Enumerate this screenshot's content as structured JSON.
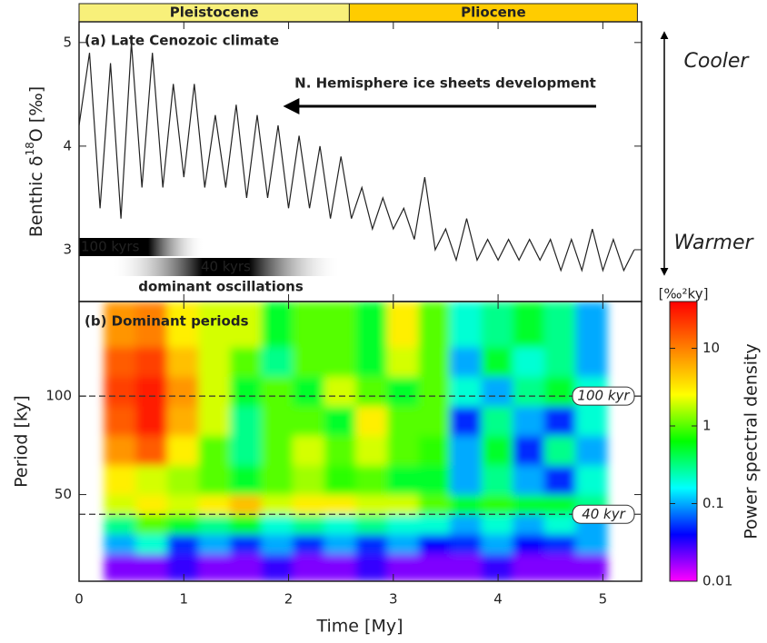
{
  "chart_data": [
    {
      "type": "line",
      "title": "(a) Late Cenozoic climate",
      "ylabel_parts": [
        "Benthic δ",
        "18",
        "O [‰]"
      ],
      "xlim": [
        0,
        5.37
      ],
      "ylim": [
        2.5,
        5.2
      ],
      "yticks": [
        3,
        4,
        5
      ],
      "x": [
        0,
        0.1,
        0.2,
        0.3,
        0.4,
        0.5,
        0.6,
        0.7,
        0.8,
        0.9,
        1.0,
        1.1,
        1.2,
        1.3,
        1.4,
        1.5,
        1.6,
        1.7,
        1.8,
        1.9,
        2.0,
        2.1,
        2.2,
        2.3,
        2.4,
        2.5,
        2.6,
        2.7,
        2.8,
        2.9,
        3.0,
        3.1,
        3.2,
        3.3,
        3.4,
        3.5,
        3.6,
        3.7,
        3.8,
        3.9,
        4.0,
        4.1,
        4.2,
        4.3,
        4.4,
        4.5,
        4.6,
        4.7,
        4.8,
        4.9,
        5.0,
        5.1,
        5.2,
        5.3
      ],
      "values": [
        4.2,
        4.9,
        3.4,
        4.8,
        3.3,
        5.0,
        3.6,
        4.9,
        3.6,
        4.6,
        3.7,
        4.6,
        3.6,
        4.3,
        3.6,
        4.4,
        3.5,
        4.3,
        3.5,
        4.2,
        3.4,
        4.1,
        3.4,
        4.0,
        3.3,
        3.9,
        3.3,
        3.6,
        3.2,
        3.5,
        3.2,
        3.4,
        3.1,
        3.7,
        3.0,
        3.2,
        2.9,
        3.3,
        2.9,
        3.1,
        2.9,
        3.1,
        2.9,
        3.1,
        2.9,
        3.1,
        2.8,
        3.1,
        2.8,
        3.2,
        2.8,
        3.1,
        2.8,
        3.0
      ],
      "color": "#222222",
      "epochs": [
        {
          "name": "Pleistocene",
          "start": 0,
          "end": 2.58,
          "color": "#f8f07a"
        },
        {
          "name": "Pliocene",
          "start": 2.58,
          "end": 5.33,
          "color": "#ffcc00"
        }
      ],
      "arrow_label": "N. Hemisphere ice sheets development",
      "cooler": "Cooler",
      "warmer": "Warmer",
      "bands": [
        {
          "label": "100 kyrs",
          "start": 0,
          "end": 1.2
        },
        {
          "label": "40 kyrs",
          "start": 0.3,
          "end": 2.5
        }
      ],
      "bands_caption": "dominant oscillations"
    },
    {
      "type": "heatmap",
      "title": "(b) Dominant periods",
      "xlabel": "Time [My]",
      "ylabel": "Period [ky]",
      "xlim": [
        0,
        5.37
      ],
      "xticks": [
        0,
        1,
        2,
        3,
        4,
        5
      ],
      "ylim": [
        6,
        148
      ],
      "yticks": [
        50,
        100
      ],
      "x_edges": [
        0.24,
        0.54,
        0.84,
        1.14,
        1.44,
        1.74,
        2.04,
        2.34,
        2.64,
        2.94,
        3.24,
        3.54,
        3.84,
        4.14,
        4.44,
        4.74,
        5.04
      ],
      "y_edges": [
        6,
        20,
        30,
        40,
        50,
        65,
        80,
        95,
        110,
        125,
        148
      ],
      "z": [
        [
          0.02,
          0.02,
          0.03,
          0.02,
          0.02,
          0.03,
          0.02,
          0.02,
          0.03,
          0.02,
          0.02,
          0.02,
          0.03,
          0.02,
          0.02,
          0.02
        ],
        [
          0.1,
          0.2,
          0.05,
          0.1,
          0.05,
          0.1,
          0.05,
          0.1,
          0.05,
          0.1,
          0.04,
          0.05,
          0.1,
          0.04,
          0.05,
          0.1
        ],
        [
          0.3,
          1,
          0.5,
          0.3,
          0.5,
          0.2,
          0.3,
          0.2,
          0.3,
          0.2,
          0.2,
          0.1,
          0.2,
          0.1,
          0.2,
          0.1
        ],
        [
          2,
          3,
          2,
          3,
          5,
          2,
          3,
          3,
          2,
          2,
          1,
          0.5,
          0.8,
          0.5,
          0.5,
          0.3
        ],
        [
          3,
          2,
          1.5,
          1,
          0.5,
          1,
          1.5,
          0.8,
          1,
          0.5,
          0.5,
          0.1,
          0.3,
          0.1,
          0.05,
          0.2
        ],
        [
          8,
          15,
          3,
          1,
          0.3,
          1,
          2,
          1,
          2,
          1,
          0.8,
          0.1,
          0.5,
          0.05,
          0.3,
          0.1
        ],
        [
          15,
          30,
          6,
          2,
          0.3,
          1,
          1,
          0.5,
          3,
          1,
          1,
          0.05,
          0.3,
          0.1,
          0.05,
          0.2
        ],
        [
          20,
          30,
          8,
          2,
          0.5,
          1,
          0.5,
          2,
          1,
          0.5,
          1,
          0.2,
          0.1,
          0.3,
          0.5,
          0.2
        ],
        [
          15,
          20,
          5,
          2,
          1,
          0.3,
          1,
          1,
          0.5,
          2,
          1,
          0.1,
          0.5,
          0.2,
          0.3,
          0.1
        ],
        [
          8,
          10,
          3,
          2,
          2,
          0.5,
          1,
          1,
          0.5,
          3,
          1,
          0.2,
          0.3,
          0.5,
          0.3,
          0.1
        ]
      ],
      "clim": [
        0.01,
        40
      ],
      "cticks": [
        0.01,
        0.1,
        1,
        10
      ],
      "log_color": true,
      "colormap": [
        "#ff00ff",
        "#0000ff",
        "#00ffff",
        "#00ff00",
        "#ffff00",
        "#ff8000",
        "#ff0000"
      ],
      "colorbar_label": "Power spectral density",
      "colorbar_unit": "[‰²ky]",
      "hlines": [
        {
          "value": 100,
          "label": "100 kyr"
        },
        {
          "value": 40,
          "label": "40 kyr"
        }
      ]
    }
  ]
}
